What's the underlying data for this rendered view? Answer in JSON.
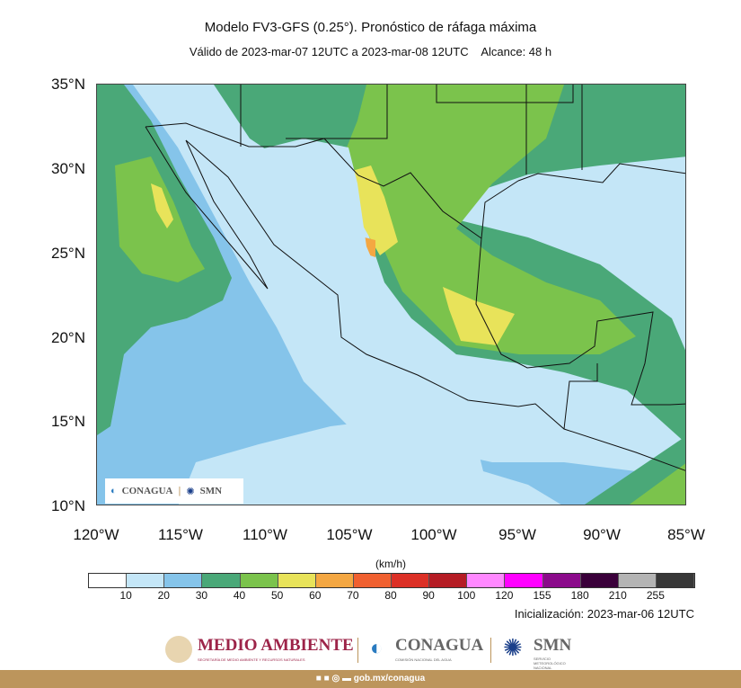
{
  "title": "Modelo FV3-GFS (0.25°). Pronóstico de ráfaga máxima",
  "subtitle": "Válido de 2023-mar-07 12UTC a 2023-mar-08 12UTC    Alcance: 48 h",
  "lat_labels": [
    "35°N",
    "30°N",
    "25°N",
    "20°N",
    "15°N",
    "10°N"
  ],
  "lon_labels": [
    "120°W",
    "115°W",
    "110°W",
    "105°W",
    "100°W",
    "95°W",
    "90°W",
    "85°W"
  ],
  "map_extent": {
    "lon": [
      -120,
      -85
    ],
    "lat": [
      10,
      35
    ]
  },
  "map_logo": {
    "conagua": "CONAGUA",
    "smn": "SMN"
  },
  "colorbar": {
    "units": "(km/h)",
    "labels": [
      "10",
      "20",
      "30",
      "40",
      "50",
      "60",
      "70",
      "80",
      "90",
      "100",
      "120",
      "155",
      "180",
      "210",
      "255"
    ],
    "colors": [
      "#ffffff",
      "#c4e6f7",
      "#85c4ea",
      "#4aa878",
      "#7bc34c",
      "#e8e35a",
      "#f4a742",
      "#f06030",
      "#dc3026",
      "#b51c24",
      "#ff88ff",
      "#ff00ff",
      "#8b0a8b",
      "#3a003a",
      "#b4b4b4",
      "#383838"
    ]
  },
  "initialization": "Inicialización: 2023-mar-06 12UTC",
  "footer_logos": {
    "medio_ambiente": "MEDIO AMBIENTE",
    "medio_sub": "SECRETARÍA DE MEDIO AMBIENTE Y RECURSOS NATURALES",
    "conagua": "CONAGUA",
    "conagua_sub": "COMISIÓN NACIONAL DEL AGUA",
    "smn": "SMN",
    "smn_sub": "SERVICIO METEOROLÓGICO NACIONAL"
  },
  "footer": {
    "link": "gob.mx/conagua",
    "social_icons": [
      "facebook-icon",
      "twitter-icon",
      "instagram-icon",
      "youtube-icon"
    ]
  }
}
